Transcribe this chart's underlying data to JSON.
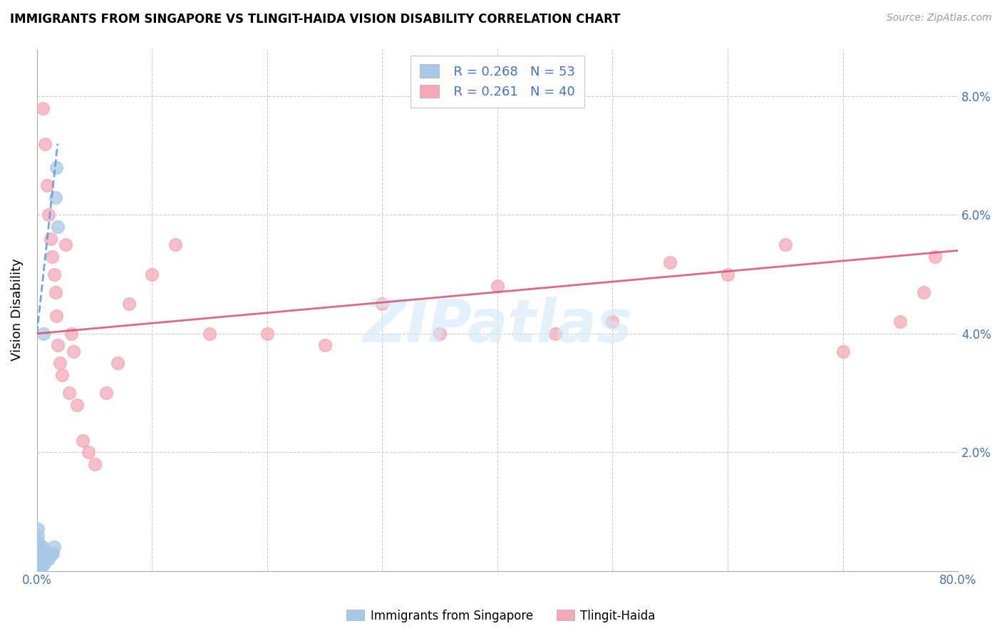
{
  "title": "IMMIGRANTS FROM SINGAPORE VS TLINGIT-HAIDA VISION DISABILITY CORRELATION CHART",
  "source": "Source: ZipAtlas.com",
  "ylabel": "Vision Disability",
  "legend_r1": "R = 0.268",
  "legend_n1": "N = 53",
  "legend_r2": "R = 0.261",
  "legend_n2": "N = 40",
  "legend_label1": "Immigrants from Singapore",
  "legend_label2": "Tlingit-Haida",
  "blue_color": "#a8c8e8",
  "pink_color": "#f4a8b8",
  "trendline_blue_color": "#5b9bd5",
  "trendline_pink_color": "#d94f6e",
  "background_color": "#ffffff",
  "xlim": [
    0.0,
    0.8
  ],
  "ylim": [
    0.0,
    0.088
  ],
  "blue_points_x": [
    0.0005,
    0.0006,
    0.0007,
    0.0008,
    0.0009,
    0.001,
    0.001,
    0.001,
    0.0012,
    0.0013,
    0.0014,
    0.0015,
    0.0015,
    0.0016,
    0.0017,
    0.0018,
    0.002,
    0.002,
    0.002,
    0.0022,
    0.0023,
    0.0024,
    0.0025,
    0.0026,
    0.003,
    0.003,
    0.003,
    0.003,
    0.004,
    0.004,
    0.004,
    0.005,
    0.005,
    0.005,
    0.005,
    0.006,
    0.006,
    0.006,
    0.007,
    0.007,
    0.008,
    0.008,
    0.009,
    0.01,
    0.011,
    0.012,
    0.013,
    0.014,
    0.015,
    0.016,
    0.017,
    0.018,
    0.006
  ],
  "blue_points_y": [
    0.007,
    0.006,
    0.005,
    0.004,
    0.003,
    0.002,
    0.003,
    0.004,
    0.002,
    0.003,
    0.002,
    0.002,
    0.003,
    0.003,
    0.002,
    0.002,
    0.001,
    0.002,
    0.003,
    0.002,
    0.002,
    0.001,
    0.001,
    0.002,
    0.001,
    0.002,
    0.003,
    0.004,
    0.001,
    0.002,
    0.003,
    0.001,
    0.002,
    0.003,
    0.004,
    0.001,
    0.002,
    0.003,
    0.002,
    0.003,
    0.002,
    0.003,
    0.002,
    0.002,
    0.003,
    0.003,
    0.003,
    0.003,
    0.004,
    0.063,
    0.068,
    0.058,
    0.04
  ],
  "pink_points_x": [
    0.005,
    0.007,
    0.009,
    0.01,
    0.012,
    0.013,
    0.015,
    0.016,
    0.017,
    0.018,
    0.02,
    0.022,
    0.025,
    0.028,
    0.03,
    0.032,
    0.035,
    0.04,
    0.045,
    0.05,
    0.06,
    0.07,
    0.08,
    0.1,
    0.12,
    0.15,
    0.2,
    0.25,
    0.3,
    0.35,
    0.4,
    0.45,
    0.5,
    0.55,
    0.6,
    0.65,
    0.7,
    0.75,
    0.77,
    0.78
  ],
  "pink_points_y": [
    0.078,
    0.072,
    0.065,
    0.06,
    0.056,
    0.053,
    0.05,
    0.047,
    0.043,
    0.038,
    0.035,
    0.033,
    0.055,
    0.03,
    0.04,
    0.037,
    0.028,
    0.022,
    0.02,
    0.018,
    0.03,
    0.035,
    0.045,
    0.05,
    0.055,
    0.04,
    0.04,
    0.038,
    0.045,
    0.04,
    0.048,
    0.04,
    0.042,
    0.052,
    0.05,
    0.055,
    0.037,
    0.042,
    0.047,
    0.053
  ],
  "blue_trend_x": [
    0.0,
    0.018
  ],
  "blue_trend_y": [
    0.04,
    0.072
  ],
  "pink_trend_x": [
    0.0,
    0.8
  ],
  "pink_trend_y": [
    0.04,
    0.054
  ]
}
